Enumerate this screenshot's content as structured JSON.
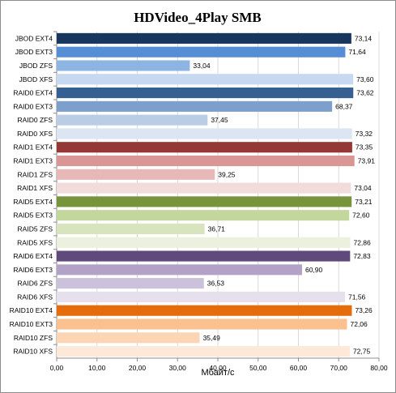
{
  "chart_data": {
    "type": "bar",
    "orientation": "horizontal",
    "title": "HDVideo_4Play SMB",
    "xlabel": "Мбайт/с",
    "ylabel": "",
    "xlim": [
      0,
      80
    ],
    "ticks": [
      "0,00",
      "10,00",
      "20,00",
      "30,00",
      "40,00",
      "50,00",
      "60,00",
      "70,00",
      "80,00"
    ],
    "grid": true,
    "legend": "none",
    "categories": [
      "JBOD EXT4",
      "JBOD EXT3",
      "JBOD ZFS",
      "JBOD XFS",
      "RAID0 EXT4",
      "RAID0 EXT3",
      "RAID0 ZFS",
      "RAID0 XFS",
      "RAID1 EXT4",
      "RAID1 EXT3",
      "RAID1 ZFS",
      "RAID1 XFS",
      "RAID5 EXT4",
      "RAID5 EXT3",
      "RAID5 ZFS",
      "RAID5 XFS",
      "RAID6 EXT4",
      "RAID6 EXT3",
      "RAID6 ZFS",
      "RAID6 XFS",
      "RAID10 EXT4",
      "RAID10 EXT3",
      "RAID10 ZFS",
      "RAID10 XFS"
    ],
    "values": [
      73.14,
      71.64,
      33.04,
      73.6,
      73.62,
      68.37,
      37.45,
      73.32,
      73.35,
      73.91,
      39.25,
      73.04,
      73.21,
      72.6,
      36.71,
      72.86,
      72.83,
      60.9,
      36.53,
      71.56,
      73.26,
      72.06,
      35.49,
      72.75
    ],
    "value_labels": [
      "73,14",
      "71,64",
      "33,04",
      "73,60",
      "73,62",
      "68,37",
      "37,45",
      "73,32",
      "73,35",
      "73,91",
      "39,25",
      "73,04",
      "73,21",
      "72,60",
      "36,71",
      "72,86",
      "72,83",
      "60,90",
      "36,53",
      "71,56",
      "73,26",
      "72,06",
      "35,49",
      "72,75"
    ],
    "colors": [
      "#17375e",
      "#558ed5",
      "#8eb4e3",
      "#c6d9f1",
      "#376092",
      "#7c9fcb",
      "#b9cde5",
      "#dce6f2",
      "#953735",
      "#d99694",
      "#e6b9b8",
      "#f2dcdb",
      "#77933c",
      "#c3d69b",
      "#d7e4bd",
      "#ebf1de",
      "#604a7b",
      "#b3a2c7",
      "#ccc1da",
      "#e6e0ec",
      "#e46c0a",
      "#fac090",
      "#fcd5b5",
      "#fde9d9"
    ]
  }
}
